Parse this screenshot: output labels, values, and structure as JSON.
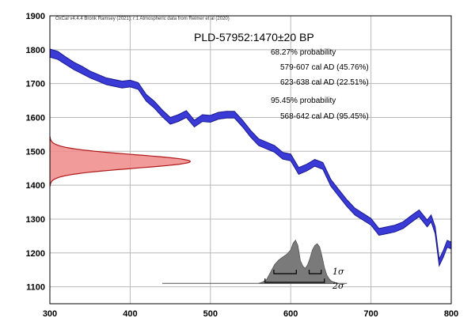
{
  "chart_data": {
    "type": "line",
    "credit": "OxCal v4.4.4 Bronk Ramsey (2021); r:1 Atmospheric data from Reimer et al (2020)",
    "title": "PLD-57952:1470±20 BP",
    "xlim": [
      300,
      800
    ],
    "ylim": [
      1050,
      1900
    ],
    "xticks": [
      "300",
      "400",
      "500",
      "600",
      "700",
      "800"
    ],
    "yticks": [
      "1900",
      "1800",
      "1700",
      "1600",
      "1500",
      "1400",
      "1300",
      "1200",
      "1100"
    ],
    "grid": true,
    "annotations": [
      "68.27% probability",
      "579-607 cal AD (45.76%)",
      "623-638 cal AD (22.51%)",
      "95.45% probability",
      "568-642 cal AD (95.45%)"
    ],
    "sigma_labels": [
      "1σ",
      "2σ"
    ],
    "colors": {
      "curve": "#3a3ad6",
      "curve_edge": "#1a1a90",
      "radiocarbon": "#f08a8a",
      "radiocarbon_edge": "#b01818",
      "posterior": "#7a7a7a"
    },
    "series": [
      {
        "kind": "calibration-curve",
        "x": [
          300,
          310,
          320,
          330,
          340,
          350,
          360,
          370,
          380,
          390,
          400,
          410,
          420,
          430,
          440,
          450,
          460,
          470,
          480,
          490,
          500,
          510,
          520,
          530,
          540,
          550,
          560,
          570,
          580,
          590,
          600,
          610,
          620,
          630,
          640,
          650,
          660,
          670,
          680,
          690,
          700,
          710,
          720,
          730,
          740,
          750,
          760,
          770,
          775,
          780,
          785,
          790,
          795,
          800
        ],
        "y": [
          1790,
          1783,
          1767,
          1752,
          1740,
          1727,
          1717,
          1707,
          1702,
          1697,
          1700,
          1693,
          1658,
          1638,
          1612,
          1590,
          1598,
          1610,
          1582,
          1598,
          1596,
          1605,
          1608,
          1608,
          1582,
          1552,
          1527,
          1517,
          1507,
          1487,
          1482,
          1442,
          1452,
          1466,
          1457,
          1407,
          1377,
          1347,
          1322,
          1307,
          1292,
          1262,
          1267,
          1272,
          1282,
          1300,
          1317,
          1287,
          1302,
          1267,
          1172,
          1197,
          1227,
          1222
        ],
        "band_half_width": [
          12,
          12,
          11,
          11,
          11,
          10,
          10,
          10,
          10,
          10,
          10,
          10,
          10,
          10,
          10,
          10,
          10,
          10,
          10,
          10,
          10,
          10,
          10,
          10,
          10,
          10,
          10,
          10,
          10,
          10,
          10,
          10,
          10,
          10,
          10,
          10,
          10,
          10,
          10,
          10,
          10,
          10,
          10,
          10,
          10,
          10,
          10,
          10,
          10,
          10,
          10,
          10,
          10,
          10
        ]
      },
      {
        "kind": "radiocarbon-distribution",
        "mean": 1470,
        "sd": 20,
        "peak_x": 475
      },
      {
        "kind": "calibrated-posterior",
        "baseline_y": 1110,
        "x_range": [
          440,
          670
        ],
        "x": [
          560,
          565,
          570,
          575,
          580,
          585,
          590,
          595,
          600,
          603,
          606,
          609,
          612,
          615,
          618,
          621,
          624,
          627,
          630,
          633,
          636,
          639,
          642,
          645,
          648,
          651,
          654,
          657,
          660
        ],
        "density": [
          0,
          0.03,
          0.09,
          0.26,
          0.43,
          0.53,
          0.6,
          0.66,
          0.76,
          0.91,
          0.98,
          0.86,
          0.52,
          0.4,
          0.34,
          0.42,
          0.57,
          0.76,
          0.86,
          0.9,
          0.83,
          0.62,
          0.36,
          0.19,
          0.1,
          0.05,
          0.03,
          0.01,
          0
        ]
      }
    ],
    "sigma_ranges": {
      "one_sigma": [
        [
          579,
          607
        ],
        [
          623,
          638
        ]
      ],
      "two_sigma": [
        [
          568,
          642
        ]
      ]
    }
  }
}
